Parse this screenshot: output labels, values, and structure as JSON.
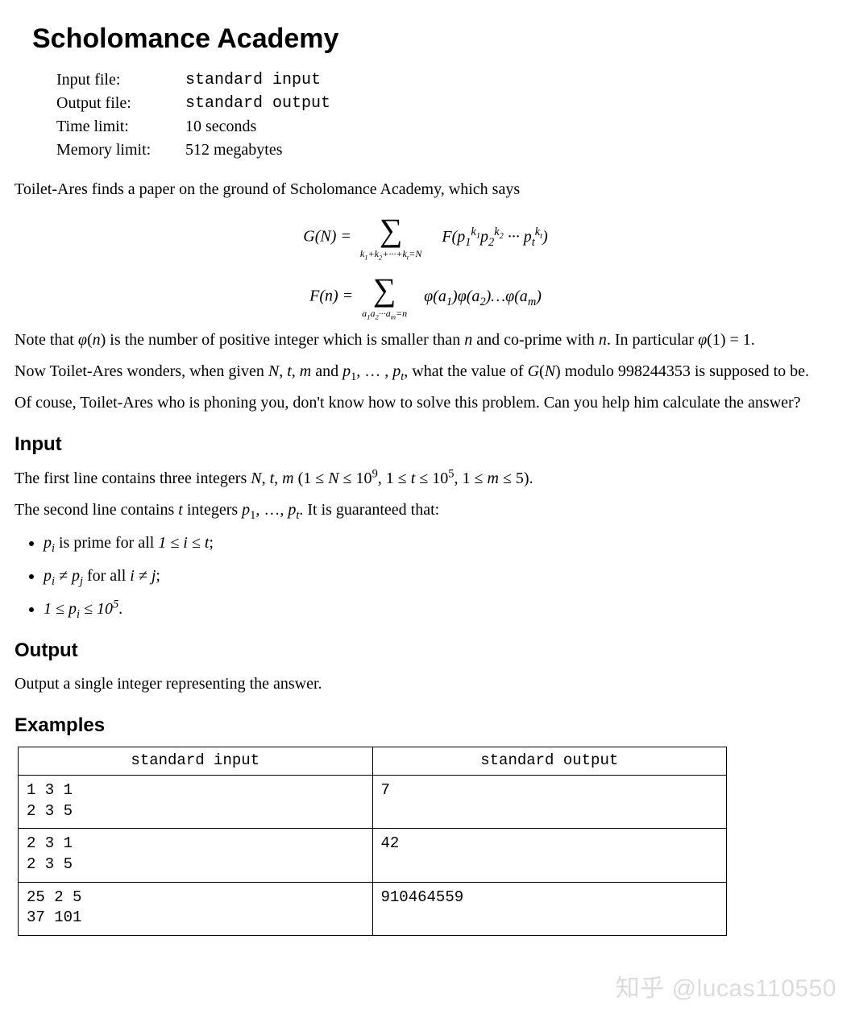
{
  "title": "Scholomance Academy",
  "meta": {
    "rows": [
      {
        "label": "Input file:",
        "value": "standard input",
        "mono": true
      },
      {
        "label": "Output file:",
        "value": "standard output",
        "mono": true
      },
      {
        "label": "Time limit:",
        "value": "10 seconds",
        "mono": false
      },
      {
        "label": "Memory limit:",
        "value": "512 megabytes",
        "mono": false
      }
    ]
  },
  "intro": "Toilet-Ares finds a paper on the ground of Scholomance Academy, which says",
  "formula_G": {
    "lhs": "G(N) = ",
    "sigma_sub": "k₁+k₂+···+k_t = N",
    "rhs_html": "F(p<sub>1</sub><sup>k<sub>1</sub></sup>p<sub>2</sub><sup>k<sub>2</sub></sup> ··· p<sub>t</sub><sup>k<sub>t</sub></sup>)"
  },
  "formula_F": {
    "lhs": "F(n) = ",
    "sigma_sub": "a₁a₂···a_m = n",
    "rhs_html": "φ(a<sub>1</sub>)φ(a<sub>2</sub>)…φ(a<sub>m</sub>)"
  },
  "note_html": "Note that <i>φ</i>(<i>n</i>) is the number of positive integer which is smaller than <i>n</i> and co-prime with <i>n</i>. In particular <i>φ</i>(1) = 1.",
  "wonder_html": "Now Toilet-Ares wonders, when given <i>N</i>, <i>t</i>, <i>m</i> and <i>p</i><sub>1</sub>, … , <i>p<sub>t</sub></i>, what the value of <i>G</i>(<i>N</i>) modulo 998244353 is supposed to be.",
  "ofcourse": "Of couse, Toilet-Ares who is phoning you, don't know how to solve this problem. Can you help him calculate the answer?",
  "sections": {
    "input": "Input",
    "output": "Output",
    "examples": "Examples"
  },
  "input_p1_html": "The first line contains three integers <i>N</i>, <i>t</i>, <i>m</i> (1 ≤ <i>N</i> ≤ 10<sup>9</sup>, 1 ≤ <i>t</i> ≤ 10<sup>5</sup>, 1 ≤ <i>m</i> ≤ 5).",
  "input_p2_html": "The second line contains <i>t</i> integers <i>p</i><sub>1</sub>, …, <i>p<sub>t</sub></i>. It is guaranteed that:",
  "bullets": [
    "p<sub>i</sub> <span class=\"upright\">is prime for all</span> 1 ≤ i ≤ t<span class=\"upright\">;</span>",
    "p<sub>i</sub> ≠ p<sub>j</sub> <span class=\"upright\">for all</span> i ≠ j<span class=\"upright\">;</span>",
    "1 ≤ p<sub>i</sub> ≤ 10<sup>5</sup><span class=\"upright\">.</span>"
  ],
  "output_text": "Output a single integer representing the answer.",
  "io_table": {
    "headers": [
      "standard input",
      "standard output"
    ],
    "rows": [
      {
        "in": "1 3 1\n2 3 5",
        "out": "7"
      },
      {
        "in": "2 3 1\n2 3 5",
        "out": "42"
      },
      {
        "in": "25 2 5\n37 101",
        "out": "910464559"
      }
    ]
  },
  "watermark": "知乎 @lucas110550",
  "colors": {
    "text": "#000000",
    "background": "#ffffff",
    "border": "#000000",
    "watermark": "rgba(0,0,0,0.14)"
  }
}
